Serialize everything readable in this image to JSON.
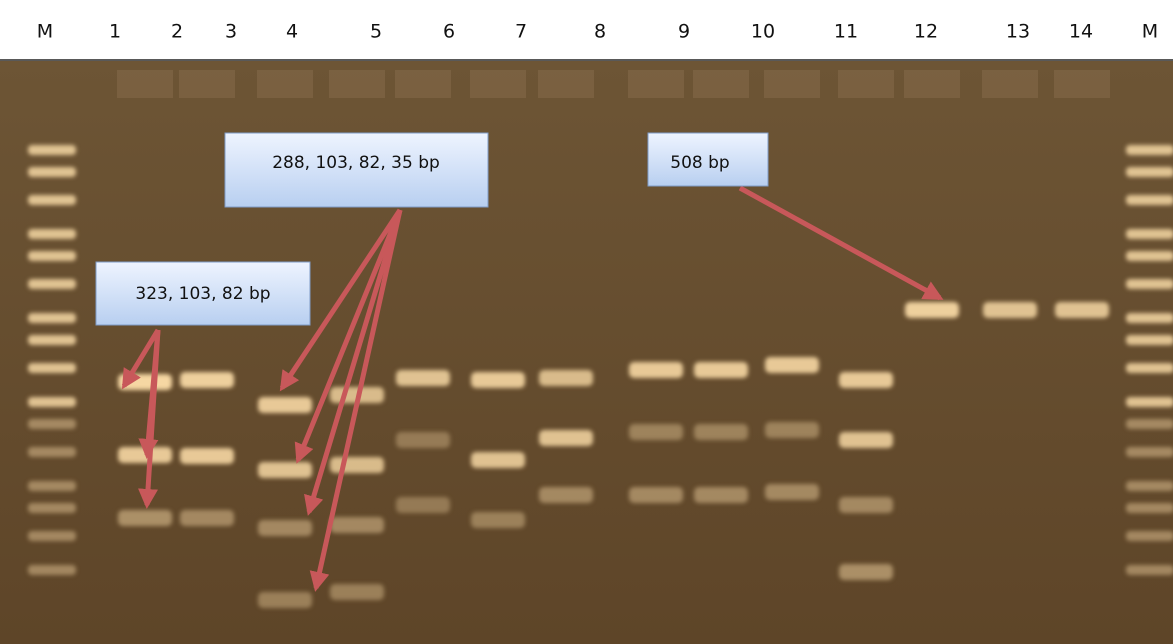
{
  "lanes": [
    "M",
    "1",
    "2",
    "3",
    "4",
    "5",
    "6",
    "7",
    "8",
    "9",
    "10",
    "11",
    "12",
    "13",
    "14",
    "M"
  ],
  "annotations": [
    {
      "label": "323, 103, 82 bp"
    },
    {
      "label": "288, 103, 82, 35 bp"
    },
    {
      "label": "508 bp"
    }
  ]
}
